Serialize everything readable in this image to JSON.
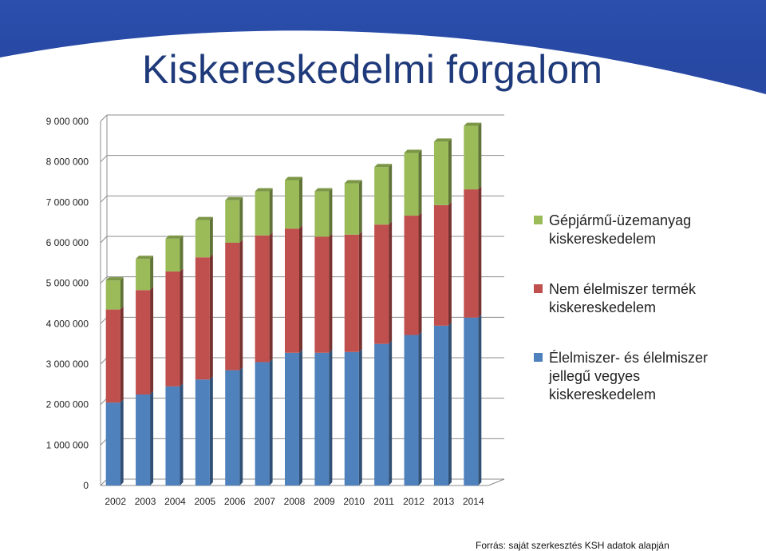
{
  "title": "Kiskereskedelmi forgalom",
  "source": "Forrás: saját szerkesztés KSH adatok alapján",
  "colors": {
    "header": "#2b4fad",
    "title": "#1f3a7a",
    "food": "#4f81bd",
    "nonfood": "#c0504d",
    "fuel": "#9bbb59"
  },
  "chart_data": {
    "type": "bar",
    "stacked": true,
    "three_d": true,
    "categories": [
      "2002",
      "2003",
      "2004",
      "2005",
      "2006",
      "2007",
      "2008",
      "2009",
      "2010",
      "2011",
      "2012",
      "2013",
      "2014"
    ],
    "ylim": [
      0,
      9000000
    ],
    "yticks": [
      0,
      1000000,
      2000000,
      3000000,
      4000000,
      5000000,
      6000000,
      7000000,
      8000000,
      9000000
    ],
    "ytick_labels": [
      "0",
      "1 000 000",
      "2 000 000",
      "3 000 000",
      "4 000 000",
      "5 000 000",
      "6 000 000",
      "7 000 000",
      "8 000 000",
      "9 000 000"
    ],
    "grid": true,
    "legend_position": "right",
    "series": [
      {
        "name": "Élelmiszer- és élelmiszer jellegű vegyes kiskereskedelem",
        "legend_lines": [
          "Élelmiszer- és élelmiszer",
          "jellegű vegyes",
          "kiskereskedelem"
        ],
        "color": "#4f81bd",
        "values": [
          2050000,
          2250000,
          2450000,
          2620000,
          2850000,
          3050000,
          3280000,
          3280000,
          3300000,
          3500000,
          3720000,
          3950000,
          4150000
        ]
      },
      {
        "name": "Nem élelmiszer termék kiskereskedelem",
        "legend_lines": [
          "Nem élelmiszer termék",
          "kiskereskedelem"
        ],
        "color": "#c0504d",
        "values": [
          2300000,
          2580000,
          2840000,
          3020000,
          3150000,
          3130000,
          3070000,
          2870000,
          2900000,
          2950000,
          2950000,
          2980000,
          3170000
        ]
      },
      {
        "name": "Gépjármű-üzemanyag kiskereskedelem",
        "legend_lines": [
          "Gépjármű-üzemanyag",
          "kiskereskedelem"
        ],
        "color": "#9bbb59",
        "values": [
          720000,
          770000,
          810000,
          920000,
          1050000,
          1090000,
          1200000,
          1120000,
          1270000,
          1420000,
          1550000,
          1570000,
          1570000
        ]
      }
    ]
  }
}
